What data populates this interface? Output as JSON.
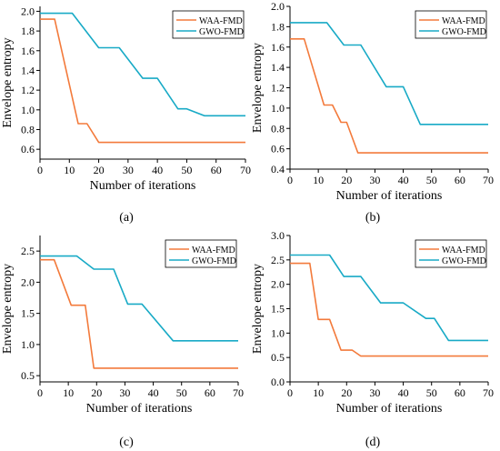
{
  "colors": {
    "waa": "#F37A3B",
    "gwo": "#18AAC6",
    "axis": "#000000"
  },
  "chart_data": [
    {
      "type": "line",
      "panel_label": "(a)",
      "xlabel": "Number of iterations",
      "ylabel": "Envelope entropy",
      "xlim": [
        0,
        70
      ],
      "ylim": [
        0.5,
        2.05
      ],
      "xticks": [
        0,
        10,
        20,
        30,
        40,
        50,
        60,
        70
      ],
      "yticks": [
        0.6,
        0.8,
        1.0,
        1.2,
        1.4,
        1.6,
        1.8,
        2.0
      ],
      "ytick_labels": [
        "0.6",
        "0.8",
        "1.0",
        "1.2",
        "1.4",
        "1.6",
        "1.8",
        "2.0"
      ],
      "legend_position": "top-right",
      "series": [
        {
          "name": "WAA-FMD",
          "color": "#F37A3B",
          "x": [
            0,
            5,
            13,
            16,
            20,
            70
          ],
          "y": [
            1.92,
            1.92,
            0.86,
            0.86,
            0.67,
            0.67
          ]
        },
        {
          "name": "GWO-FMD",
          "color": "#18AAC6",
          "x": [
            0,
            11,
            20,
            27,
            35,
            40,
            47,
            50,
            56,
            70
          ],
          "y": [
            1.98,
            1.98,
            1.63,
            1.63,
            1.32,
            1.32,
            1.01,
            1.01,
            0.94,
            0.94
          ]
        }
      ]
    },
    {
      "type": "line",
      "panel_label": "(b)",
      "xlabel": "Number of iterations",
      "ylabel": "Envelope entropy",
      "xlim": [
        0,
        70
      ],
      "ylim": [
        0.4,
        2.0
      ],
      "xticks": [
        0,
        10,
        20,
        30,
        40,
        50,
        60,
        70
      ],
      "yticks": [
        0.4,
        0.6,
        0.8,
        1.0,
        1.2,
        1.4,
        1.6,
        1.8,
        2.0
      ],
      "ytick_labels": [
        "0.4",
        "0.6",
        "0.8",
        "1.0",
        "1.2",
        "1.4",
        "1.6",
        "1.8",
        "2.0"
      ],
      "legend_position": "top-right",
      "series": [
        {
          "name": "WAA-FMD",
          "color": "#F37A3B",
          "x": [
            0,
            5,
            12,
            15,
            18,
            20,
            24,
            70
          ],
          "y": [
            1.68,
            1.68,
            1.03,
            1.03,
            0.86,
            0.86,
            0.56,
            0.56
          ]
        },
        {
          "name": "GWO-FMD",
          "color": "#18AAC6",
          "x": [
            0,
            13,
            19,
            25,
            34,
            40,
            46,
            70
          ],
          "y": [
            1.84,
            1.84,
            1.62,
            1.62,
            1.21,
            1.21,
            0.84,
            0.84
          ]
        }
      ]
    },
    {
      "type": "line",
      "panel_label": "(c)",
      "xlabel": "Number of iterations",
      "ylabel": "Envelope entropy",
      "xlim": [
        0,
        70
      ],
      "ylim": [
        0.4,
        2.75
      ],
      "xticks": [
        0,
        10,
        20,
        30,
        40,
        50,
        60,
        70
      ],
      "yticks": [
        0.5,
        1.0,
        1.5,
        2.0,
        2.5
      ],
      "ytick_labels": [
        "0.5",
        "1.0",
        "1.5",
        "2.0",
        "2.5"
      ],
      "legend_position": "top-right",
      "series": [
        {
          "name": "WAA-FMD",
          "color": "#F37A3B",
          "x": [
            0,
            5,
            11,
            16,
            19,
            70
          ],
          "y": [
            2.36,
            2.36,
            1.63,
            1.63,
            0.62,
            0.62
          ]
        },
        {
          "name": "GWO-FMD",
          "color": "#18AAC6",
          "x": [
            0,
            13,
            19,
            26,
            31,
            36,
            47,
            70
          ],
          "y": [
            2.42,
            2.42,
            2.21,
            2.21,
            1.65,
            1.65,
            1.06,
            1.06
          ]
        }
      ]
    },
    {
      "type": "line",
      "panel_label": "(d)",
      "xlabel": "Number of iterations",
      "ylabel": "Envelope entropy",
      "xlim": [
        0,
        70
      ],
      "ylim": [
        0.0,
        3.0
      ],
      "xticks": [
        0,
        10,
        20,
        30,
        40,
        50,
        60,
        70
      ],
      "yticks": [
        0.0,
        0.5,
        1.0,
        1.5,
        2.0,
        2.5,
        3.0
      ],
      "ytick_labels": [
        "0.0",
        "0.5",
        "1.0",
        "1.5",
        "2.0",
        "2.5",
        "3.0"
      ],
      "legend_position": "top-right",
      "series": [
        {
          "name": "WAA-FMD",
          "color": "#F37A3B",
          "x": [
            0,
            7,
            10,
            14,
            18,
            22,
            25,
            70
          ],
          "y": [
            2.43,
            2.43,
            1.28,
            1.28,
            0.65,
            0.65,
            0.53,
            0.53
          ]
        },
        {
          "name": "GWO-FMD",
          "color": "#18AAC6",
          "x": [
            0,
            14,
            19,
            25,
            32,
            40,
            48,
            51,
            56,
            70
          ],
          "y": [
            2.6,
            2.6,
            2.16,
            2.16,
            1.62,
            1.62,
            1.3,
            1.3,
            0.85,
            0.85
          ]
        }
      ]
    }
  ]
}
